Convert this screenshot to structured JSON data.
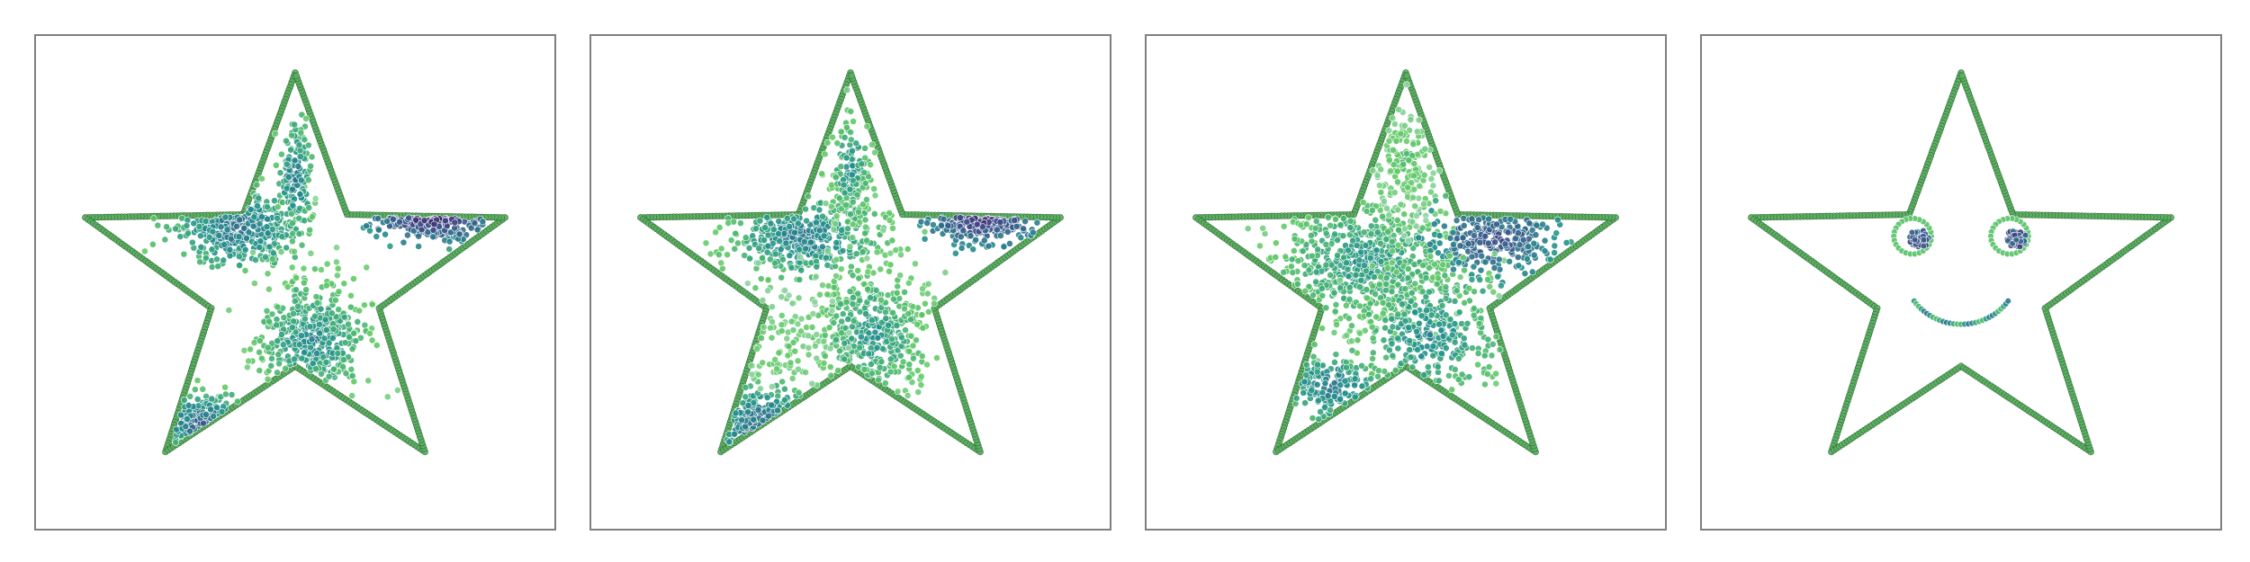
{
  "figure": {
    "panel_count": 4,
    "colors": {
      "outline_fill": "#5cb062",
      "outline_edge": "#2f6b36",
      "point_palette": [
        "#440154",
        "#3b528b",
        "#21918c",
        "#5ec962",
        "#8fd4a4"
      ],
      "frame": "#7f7f7f"
    }
  },
  "chart_data": [
    {
      "type": "scatter",
      "title": "",
      "xlabel": "",
      "ylabel": "",
      "grid": false,
      "axis_ticks": false,
      "xlim": [
        -1.15,
        1.15
      ],
      "ylim": [
        -1.15,
        1.15
      ],
      "outline": {
        "shape": "star",
        "points": 5,
        "outer_radius": 1.0,
        "inner_radius": 0.4
      },
      "clusters": [
        {
          "center": [
            -0.26,
            0.26
          ],
          "spread": [
            0.14,
            0.09
          ],
          "count": 380,
          "shade": 0.35
        },
        {
          "center": [
            0.62,
            0.31
          ],
          "spread": [
            0.12,
            0.05
          ],
          "count": 210,
          "shade": 0.1
        },
        {
          "center": [
            0.08,
            -0.27
          ],
          "spread": [
            0.13,
            0.15
          ],
          "count": 420,
          "shade": 0.45
        },
        {
          "center": [
            0.0,
            0.5
          ],
          "spread": [
            0.04,
            0.14
          ],
          "count": 150,
          "shade": 0.4
        },
        {
          "center": [
            -0.42,
            -0.67
          ],
          "spread": [
            0.09,
            0.06
          ],
          "count": 150,
          "shade": 0.3
        }
      ]
    },
    {
      "type": "scatter",
      "title": "",
      "xlabel": "",
      "ylabel": "",
      "grid": false,
      "axis_ticks": false,
      "xlim": [
        -1.15,
        1.15
      ],
      "ylim": [
        -1.15,
        1.15
      ],
      "outline": {
        "shape": "star",
        "points": 5,
        "outer_radius": 1.0,
        "inner_radius": 0.4
      },
      "clusters": [
        {
          "center": [
            -0.22,
            0.22
          ],
          "spread": [
            0.17,
            0.1
          ],
          "count": 420,
          "shade": 0.4
        },
        {
          "center": [
            0.6,
            0.31
          ],
          "spread": [
            0.12,
            0.06
          ],
          "count": 230,
          "shade": 0.12
        },
        {
          "center": [
            0.1,
            -0.25
          ],
          "spread": [
            0.14,
            0.16
          ],
          "count": 430,
          "shade": 0.5
        },
        {
          "center": [
            0.0,
            0.55
          ],
          "spread": [
            0.05,
            0.14
          ],
          "count": 170,
          "shade": 0.48
        },
        {
          "center": [
            -0.4,
            -0.68
          ],
          "spread": [
            0.11,
            0.08
          ],
          "count": 170,
          "shade": 0.32
        },
        {
          "center": [
            -0.35,
            -0.3
          ],
          "spread": [
            0.18,
            0.14
          ],
          "count": 90,
          "shade": 0.72
        }
      ]
    },
    {
      "type": "scatter",
      "title": "",
      "xlabel": "",
      "ylabel": "",
      "grid": false,
      "axis_ticks": false,
      "xlim": [
        -1.15,
        1.15
      ],
      "ylim": [
        -1.15,
        1.15
      ],
      "outline": {
        "shape": "star",
        "points": 5,
        "outer_radius": 1.0,
        "inner_radius": 0.4
      },
      "clusters": [
        {
          "center": [
            -0.2,
            0.1
          ],
          "spread": [
            0.22,
            0.16
          ],
          "count": 640,
          "shade": 0.5
        },
        {
          "center": [
            0.4,
            0.2
          ],
          "spread": [
            0.16,
            0.09
          ],
          "count": 260,
          "shade": 0.22
        },
        {
          "center": [
            0.1,
            -0.25
          ],
          "spread": [
            0.16,
            0.16
          ],
          "count": 330,
          "shade": 0.45
        },
        {
          "center": [
            -0.35,
            -0.5
          ],
          "spread": [
            0.11,
            0.08
          ],
          "count": 160,
          "shade": 0.38
        },
        {
          "center": [
            0.0,
            0.58
          ],
          "spread": [
            0.07,
            0.13
          ],
          "count": 150,
          "shade": 0.66
        }
      ]
    },
    {
      "type": "scatter",
      "title": "",
      "xlabel": "",
      "ylabel": "",
      "grid": false,
      "axis_ticks": false,
      "xlim": [
        -1.15,
        1.15
      ],
      "ylim": [
        -1.15,
        1.15
      ],
      "outline": {
        "shape": "star",
        "points": 5,
        "outer_radius": 1.0,
        "inner_radius": 0.4
      },
      "face": {
        "eyes": [
          {
            "center": [
              -0.22,
              0.22
            ],
            "ring_radius": 0.085,
            "pupil_offset": [
              0.03,
              -0.01
            ],
            "pupil_radius": 0.045
          },
          {
            "center": [
              0.22,
              0.22
            ],
            "ring_radius": 0.085,
            "pupil_offset": [
              0.03,
              -0.01
            ],
            "pupil_radius": 0.045
          }
        ],
        "smile": {
          "center": [
            0.0,
            0.06
          ],
          "radius": 0.26,
          "start_deg": 215,
          "end_deg": 325
        }
      }
    }
  ]
}
